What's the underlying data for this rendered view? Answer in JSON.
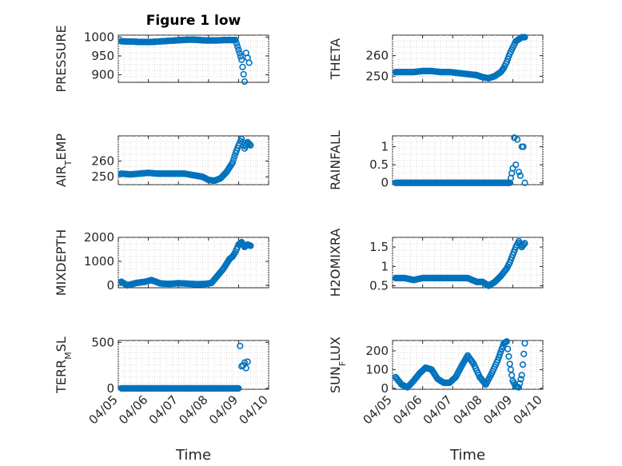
{
  "figure": {
    "title": "Figure 1 low",
    "marker_color": "#0072BD",
    "x_tick_labels": [
      "04/05",
      "04/06",
      "04/07",
      "04/08",
      "04/09",
      "04/10"
    ],
    "x_label": "Time"
  },
  "chart_data": [
    {
      "type": "scatter",
      "ylabel": "PRESSURE",
      "ylim": [
        880,
        1005
      ],
      "yticks": [
        900,
        950,
        1000
      ],
      "grid": true,
      "xlim": [
        0,
        5
      ],
      "series": [
        {
          "x": [
            0.1,
            0.3,
            0.5,
            0.7,
            0.9,
            1.1,
            1.3,
            1.5,
            1.7,
            1.9,
            2.1,
            2.3,
            2.5,
            2.7,
            2.9,
            3.1,
            3.3,
            3.5,
            3.7,
            3.9,
            4.1,
            4.2,
            4.25,
            4.3,
            4.35
          ],
          "y": [
            989,
            988,
            988,
            987,
            987,
            987,
            988,
            989,
            990,
            991,
            992,
            993,
            993,
            992,
            991,
            991,
            991,
            992,
            992,
            992,
            940,
            882,
            958,
            945,
            932
          ]
        }
      ]
    },
    {
      "type": "scatter",
      "ylabel": "THETA",
      "ylim": [
        247,
        270
      ],
      "yticks": [
        250,
        260
      ],
      "grid": true,
      "xlim": [
        0,
        5
      ],
      "series": [
        {
          "x": [
            0.1,
            0.4,
            0.7,
            1.0,
            1.3,
            1.6,
            1.9,
            2.2,
            2.5,
            2.8,
            3.0,
            3.2,
            3.4,
            3.6,
            3.7,
            3.8,
            3.9,
            4.0,
            4.1,
            4.2,
            4.3,
            4.4
          ],
          "y": [
            252,
            252,
            252,
            252.5,
            252.5,
            252,
            252,
            251.5,
            251,
            250.5,
            249.5,
            249,
            250,
            252,
            254,
            257,
            261,
            264,
            267,
            268,
            269,
            269
          ]
        }
      ]
    },
    {
      "type": "scatter",
      "ylabel": "AIR_TEMP",
      "ylim": [
        245,
        276
      ],
      "yticks": [
        250,
        260
      ],
      "grid": true,
      "xlim": [
        0,
        5
      ],
      "series": [
        {
          "x": [
            0.1,
            0.4,
            0.7,
            1.0,
            1.3,
            1.6,
            1.9,
            2.2,
            2.5,
            2.8,
            3.0,
            3.2,
            3.4,
            3.6,
            3.8,
            3.9,
            4.0,
            4.1,
            4.2,
            4.3,
            4.4
          ],
          "y": [
            252,
            251.5,
            252,
            252.5,
            252,
            252,
            252,
            252,
            251,
            250,
            248,
            247.5,
            249,
            253,
            259,
            265,
            270,
            274,
            268,
            272,
            270
          ]
        }
      ]
    },
    {
      "type": "scatter",
      "ylabel": "RAINFALL",
      "ylim": [
        -0.05,
        1.3
      ],
      "yticks": [
        0,
        0.5,
        1
      ],
      "grid": true,
      "xlim": [
        0,
        5
      ],
      "series": [
        {
          "x": [
            0.1,
            0.5,
            1.0,
            1.5,
            2.0,
            2.5,
            3.0,
            3.5,
            3.9,
            4.0,
            4.05,
            4.1,
            4.15,
            4.2,
            4.25,
            4.3,
            4.35,
            4.4
          ],
          "y": [
            0,
            0,
            0,
            0,
            0,
            0,
            0,
            0,
            0,
            0.4,
            1.25,
            0.5,
            1.2,
            0.3,
            0.2,
            1.0,
            1.0,
            0
          ]
        }
      ]
    },
    {
      "type": "scatter",
      "ylabel": "MIXDEPTH",
      "ylim": [
        -100,
        2000
      ],
      "yticks": [
        0,
        1000,
        2000
      ],
      "grid": true,
      "xlim": [
        0,
        5
      ],
      "series": [
        {
          "x": [
            0.1,
            0.3,
            0.6,
            0.9,
            1.1,
            1.4,
            1.7,
            2.0,
            2.3,
            2.6,
            2.9,
            3.1,
            3.3,
            3.5,
            3.6,
            3.7,
            3.8,
            3.9,
            4.0,
            4.1,
            4.2,
            4.3,
            4.4
          ],
          "y": [
            150,
            0,
            100,
            150,
            220,
            80,
            60,
            90,
            70,
            50,
            60,
            100,
            400,
            700,
            900,
            1100,
            1200,
            1400,
            1700,
            1800,
            1600,
            1700,
            1650
          ]
        }
      ]
    },
    {
      "type": "scatter",
      "ylabel": "H2OMIXRA",
      "ylim": [
        0.45,
        1.75
      ],
      "yticks": [
        0.5,
        1,
        1.5
      ],
      "grid": true,
      "xlim": [
        0,
        5
      ],
      "series": [
        {
          "x": [
            0.1,
            0.4,
            0.7,
            1.0,
            1.3,
            1.6,
            1.9,
            2.2,
            2.5,
            2.8,
            3.0,
            3.2,
            3.4,
            3.6,
            3.8,
            3.9,
            4.0,
            4.1,
            4.2,
            4.3,
            4.4
          ],
          "y": [
            0.7,
            0.7,
            0.65,
            0.7,
            0.7,
            0.7,
            0.7,
            0.7,
            0.7,
            0.6,
            0.6,
            0.5,
            0.6,
            0.75,
            0.95,
            1.1,
            1.3,
            1.5,
            1.65,
            1.5,
            1.6
          ]
        }
      ]
    },
    {
      "type": "scatter",
      "ylabel": "TERR_MSL",
      "ylim": [
        -10,
        520
      ],
      "yticks": [
        0,
        500
      ],
      "grid": true,
      "xlim": [
        0,
        5
      ],
      "series": [
        {
          "x": [
            0.1,
            0.5,
            1.0,
            1.5,
            2.0,
            2.5,
            3.0,
            3.5,
            4.0,
            4.05,
            4.1,
            4.15,
            4.2,
            4.25,
            4.3
          ],
          "y": [
            0,
            0,
            0,
            0,
            0,
            0,
            0,
            0,
            0,
            460,
            240,
            250,
            280,
            220,
            290
          ]
        }
      ]
    },
    {
      "type": "scatter",
      "ylabel": "SUN_FLUX",
      "ylim": [
        -5,
        255
      ],
      "yticks": [
        0,
        100,
        200
      ],
      "grid": true,
      "xlim": [
        0,
        5
      ],
      "series": [
        {
          "x": [
            0.1,
            0.3,
            0.5,
            0.7,
            0.9,
            1.1,
            1.3,
            1.5,
            1.7,
            1.9,
            2.1,
            2.3,
            2.5,
            2.7,
            2.9,
            3.1,
            3.3,
            3.5,
            3.7,
            3.8,
            3.9,
            4.0,
            4.1,
            4.2,
            4.3,
            4.4
          ],
          "y": [
            60,
            20,
            5,
            40,
            80,
            110,
            100,
            50,
            30,
            30,
            60,
            120,
            175,
            130,
            60,
            20,
            80,
            150,
            240,
            250,
            130,
            40,
            10,
            5,
            70,
            240
          ]
        }
      ]
    }
  ]
}
